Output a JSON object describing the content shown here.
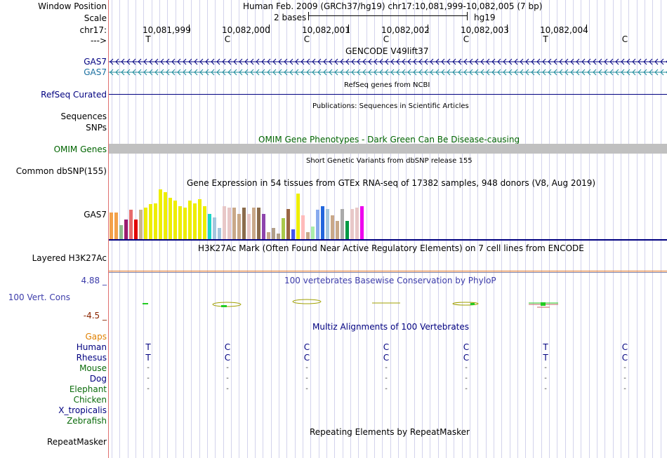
{
  "header": {
    "window_position_label": "Window Position",
    "assembly_title": "Human Feb. 2009 (GRCh37/hg19)   chr17:10,081,999-10,082,005 (7 bp)",
    "scale_label": "Scale",
    "scale_text": "2 bases",
    "scale_assembly": "hg19",
    "chrom_label": "chr17:",
    "strand_label": "--->",
    "positions": [
      "10,081,999",
      "10,082,000",
      "10,082,001",
      "10,082,002",
      "10,082,003",
      "10,082,004"
    ],
    "bases": [
      "T",
      "C",
      "C",
      "C",
      "C",
      "T",
      "C"
    ]
  },
  "tracks": {
    "gencode": {
      "title": "GENCODE V49lift37",
      "labels": [
        "GAS7",
        "GAS7"
      ]
    },
    "refseq": {
      "title": "RefSeq genes from NCBI",
      "label": "RefSeq Curated"
    },
    "publications": {
      "title": "Publications: Sequences in Scientific Articles",
      "labels": [
        "Sequences",
        "SNPs"
      ]
    },
    "omim": {
      "title": "OMIM Gene Phenotypes - Dark Green Can Be Disease-causing",
      "label": "OMIM Genes"
    },
    "dbsnp": {
      "title": "Short Genetic Variants from dbSNP release 155",
      "label": "Common dbSNP(155)"
    },
    "gtex": {
      "title": "Gene Expression in 54 tissues from GTEx RNA-seq of 17382 samples, 948 donors (V8, Aug 2019)",
      "label": "GAS7",
      "bars": [
        {
          "v": 0.52,
          "c": "#f3a14a"
        },
        {
          "v": 0.52,
          "c": "#f3a14a"
        },
        {
          "v": 0.27,
          "c": "#8fbc8f"
        },
        {
          "v": 0.38,
          "c": "#9b1b6f"
        },
        {
          "v": 0.57,
          "c": "#e76b6b"
        },
        {
          "v": 0.38,
          "c": "#e10000"
        },
        {
          "v": 0.57,
          "c": "#c9b48f"
        },
        {
          "v": 0.62,
          "c": "#eeee00"
        },
        {
          "v": 0.68,
          "c": "#eeee00"
        },
        {
          "v": 0.7,
          "c": "#eeee00"
        },
        {
          "v": 0.97,
          "c": "#eeee00"
        },
        {
          "v": 0.92,
          "c": "#eeee00"
        },
        {
          "v": 0.81,
          "c": "#eeee00"
        },
        {
          "v": 0.76,
          "c": "#eeee00"
        },
        {
          "v": 0.65,
          "c": "#eeee00"
        },
        {
          "v": 0.62,
          "c": "#eeee00"
        },
        {
          "v": 0.76,
          "c": "#eeee00"
        },
        {
          "v": 0.7,
          "c": "#eeee00"
        },
        {
          "v": 0.78,
          "c": "#eeee00"
        },
        {
          "v": 0.65,
          "c": "#eeee00"
        },
        {
          "v": 0.49,
          "c": "#1bd6c8"
        },
        {
          "v": 0.43,
          "c": "#a4c6de"
        },
        {
          "v": 0.22,
          "c": "#a4c6de"
        },
        {
          "v": 0.65,
          "c": "#e8c8c8"
        },
        {
          "v": 0.62,
          "c": "#e8c8c8"
        },
        {
          "v": 0.62,
          "c": "#c9a889"
        },
        {
          "v": 0.49,
          "c": "#c9a889"
        },
        {
          "v": 0.62,
          "c": "#8b6c4c"
        },
        {
          "v": 0.49,
          "c": "#e8c8c8"
        },
        {
          "v": 0.62,
          "c": "#c9a889"
        },
        {
          "v": 0.62,
          "c": "#8b6c4c"
        },
        {
          "v": 0.49,
          "c": "#8e44ad"
        },
        {
          "v": 0.14,
          "c": "#c9a889"
        },
        {
          "v": 0.22,
          "c": "#b2a089"
        },
        {
          "v": 0.11,
          "c": "#b2a089"
        },
        {
          "v": 0.41,
          "c": "#a9c94b"
        },
        {
          "v": 0.59,
          "c": "#996644"
        },
        {
          "v": 0.19,
          "c": "#4455ee"
        },
        {
          "v": 0.89,
          "c": "#eeee00"
        },
        {
          "v": 0.46,
          "c": "#ffbbbb"
        },
        {
          "v": 0.14,
          "c": "#c9a889"
        },
        {
          "v": 0.24,
          "c": "#aaeeaa"
        },
        {
          "v": 0.57,
          "c": "#88aaee"
        },
        {
          "v": 0.65,
          "c": "#2266dd"
        },
        {
          "v": 0.59,
          "c": "#a4c6de"
        },
        {
          "v": 0.46,
          "c": "#c9a889"
        },
        {
          "v": 0.35,
          "c": "#c9a889"
        },
        {
          "v": 0.59,
          "c": "#aaaaaa"
        },
        {
          "v": 0.35,
          "c": "#009944"
        },
        {
          "v": 0.59,
          "c": "#e8c8c8"
        },
        {
          "v": 0.62,
          "c": "#e8c8c8"
        },
        {
          "v": 0.65,
          "c": "#ee00ee"
        }
      ]
    },
    "h3k27ac": {
      "title": "H3K27Ac Mark (Often Found Near Active Regulatory Elements) on 7 cell lines from ENCODE",
      "label": "Layered H3K27Ac"
    },
    "phylop": {
      "title": "100 vertebrates Basewise Conservation by PhyloP",
      "label": "100 Vert. Cons",
      "max": "4.88 _",
      "min": "-4.5 _"
    },
    "multiz": {
      "title": "Multiz Alignments of 100 Vertebrates",
      "gaps_label": "Gaps",
      "species": [
        {
          "name": "Human",
          "seq": [
            "T",
            "C",
            "C",
            "C",
            "C",
            "T",
            "C"
          ]
        },
        {
          "name": "Rhesus",
          "seq": [
            "T",
            "C",
            "C",
            "C",
            "C",
            "T",
            "C"
          ]
        },
        {
          "name": "Mouse",
          "seq": [
            "-",
            "-",
            "-",
            "-",
            "-",
            "-",
            "-"
          ]
        },
        {
          "name": "Dog",
          "seq": [
            "-",
            "-",
            "-",
            "-",
            "-",
            "-",
            "-"
          ]
        },
        {
          "name": "Elephant",
          "seq": [
            "-",
            "-",
            "-",
            "-",
            "-",
            "-",
            "-"
          ]
        },
        {
          "name": "Chicken",
          "seq": []
        },
        {
          "name": "X_tropicalis",
          "seq": []
        },
        {
          "name": "Zebrafish",
          "seq": []
        }
      ]
    },
    "repeatmasker": {
      "title": "Repeating Elements by RepeatMasker",
      "label": "RepeatMasker"
    }
  },
  "colors": {
    "navy": "#000080",
    "teal": "#1a6fa0",
    "omim_green": "#006400",
    "phylop_blue": "#3c3caa",
    "phylop_min": "#8b2500",
    "gaps_orange": "#e08000",
    "green_species": "#0b6b0b"
  }
}
